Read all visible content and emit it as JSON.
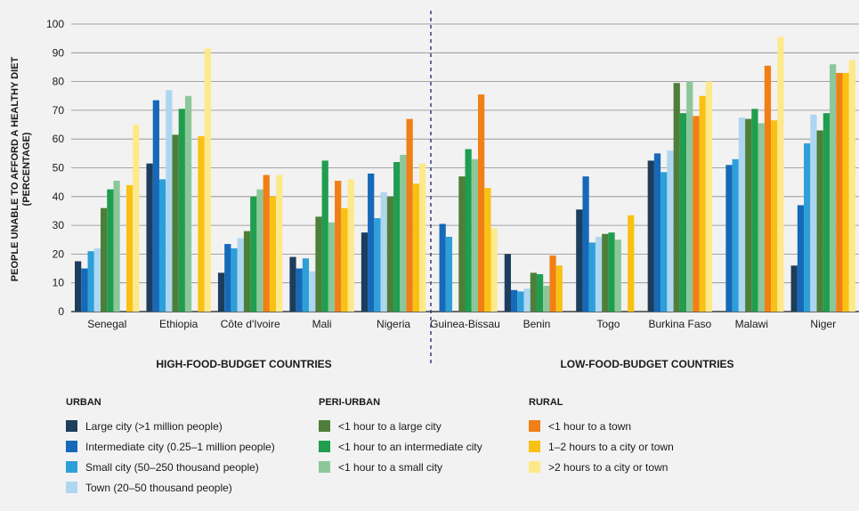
{
  "chart_data": {
    "type": "bar",
    "ylabel_lines": [
      "PEOPLE UNABLE TO AFFORD A HEALTHY DIET",
      "(PERCENTAGE)"
    ],
    "ylim": [
      0,
      100
    ],
    "yticks": [
      0,
      10,
      20,
      30,
      40,
      50,
      60,
      70,
      80,
      90,
      100
    ],
    "grid": true,
    "categories": [
      "Senegal",
      "Ethiopia",
      "Côte d'Ivoire",
      "Mali",
      "Nigeria",
      "Guinea-Bissau",
      "Benin",
      "Togo",
      "Burkina Faso",
      "Malawi",
      "Niger"
    ],
    "groups": [
      {
        "label": "HIGH-FOOD-BUDGET COUNTRIES",
        "categories": [
          "Senegal",
          "Ethiopia",
          "Côte d'Ivoire",
          "Mali",
          "Nigeria"
        ]
      },
      {
        "label": "LOW-FOOD-BUDGET COUNTRIES",
        "categories": [
          "Guinea-Bissau",
          "Benin",
          "Togo",
          "Burkina Faso",
          "Malawi",
          "Niger"
        ]
      }
    ],
    "series": [
      {
        "name": "Large city (>1 million people)",
        "group": "URBAN",
        "color": "#1d3d5c",
        "values": [
          17.5,
          51.5,
          13.5,
          19,
          27.5,
          null,
          20,
          35.5,
          52.5,
          null,
          16
        ]
      },
      {
        "name": "Intermediate city (0.25–1 million people)",
        "group": "URBAN",
        "color": "#1669b8",
        "values": [
          15,
          73.5,
          23.5,
          15,
          48,
          30.5,
          7.5,
          47,
          55,
          51,
          37
        ]
      },
      {
        "name": "Small city (50–250 thousand people)",
        "group": "URBAN",
        "color": "#2d9fd9",
        "values": [
          21,
          46,
          22,
          18.5,
          32.5,
          26,
          7,
          24,
          48.5,
          53,
          58.5
        ]
      },
      {
        "name": "Town (20–50 thousand people)",
        "group": "URBAN",
        "color": "#aed6f1",
        "values": [
          22,
          77,
          25.5,
          14,
          41.5,
          null,
          8,
          26,
          56,
          67.5,
          68.5
        ]
      },
      {
        "name": "<1 hour to a large city",
        "group": "PERI-URBAN",
        "color": "#4e7f3a",
        "values": [
          36,
          61.5,
          28,
          33,
          40,
          47,
          13.5,
          27,
          79.5,
          67,
          63
        ]
      },
      {
        "name": "<1 hour to an intermediate city",
        "group": "PERI-URBAN",
        "color": "#1f9e4f",
        "values": [
          42.5,
          70.5,
          40,
          52.5,
          52,
          56.5,
          13,
          27.5,
          69,
          70.5,
          69
        ]
      },
      {
        "name": "<1 hour to a small city",
        "group": "PERI-URBAN",
        "color": "#8cc79a",
        "values": [
          45.5,
          75,
          42.5,
          31,
          54.5,
          53,
          9,
          25,
          80,
          65.5,
          86
        ]
      },
      {
        "name": "<1 hour to a town",
        "group": "RURAL",
        "color": "#f07f16",
        "values": [
          null,
          null,
          47.5,
          45.5,
          67,
          75.5,
          19.5,
          null,
          68,
          85.5,
          83
        ]
      },
      {
        "name": "1–2 hours to a city or town",
        "group": "RURAL",
        "color": "#f9c113",
        "values": [
          44,
          61,
          40,
          36,
          44.5,
          43,
          16,
          33.5,
          75,
          66.5,
          83
        ]
      },
      {
        "name": ">2 hours to a city or town",
        "group": "RURAL",
        "color": "#fde98a",
        "values": [
          65,
          91.5,
          47.5,
          46,
          51.5,
          29,
          null,
          null,
          80,
          95.5,
          87.5
        ]
      }
    ]
  },
  "legend": {
    "urban_title": "URBAN",
    "periurban_title": "PERI-URBAN",
    "rural_title": "RURAL"
  }
}
